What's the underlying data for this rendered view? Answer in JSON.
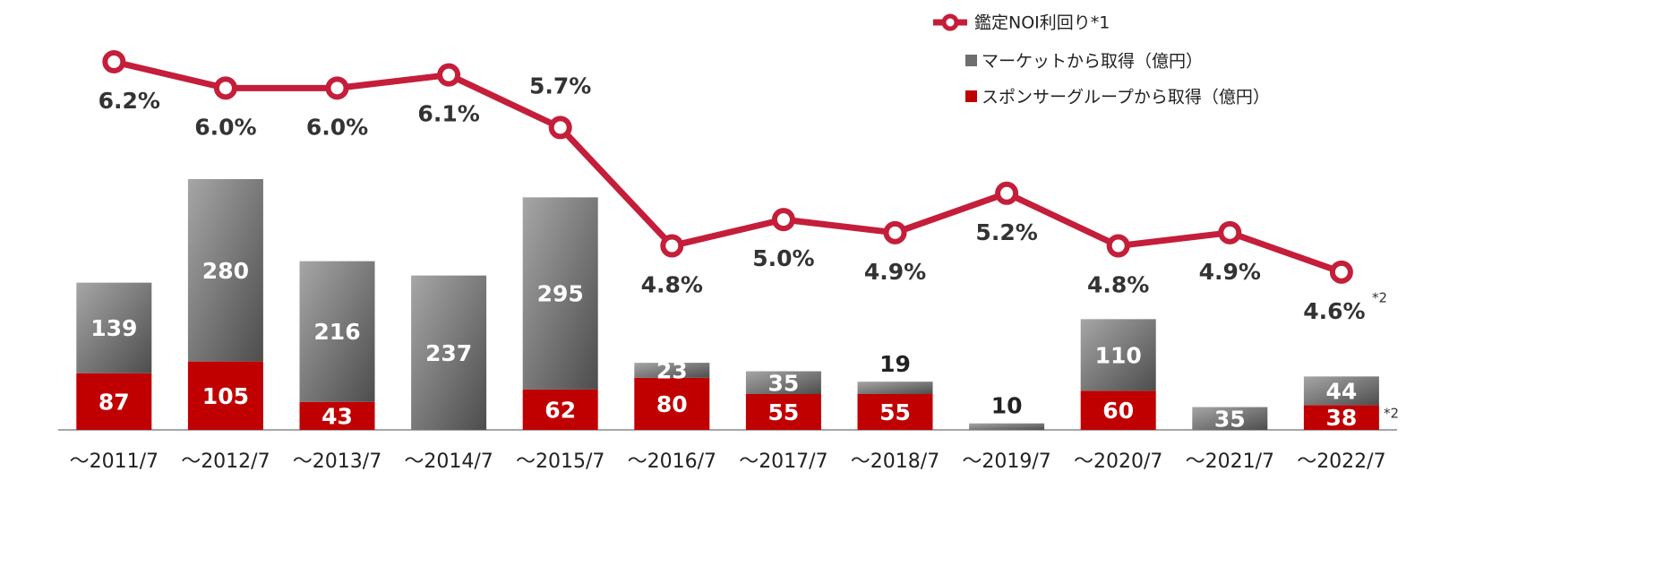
{
  "chart_data": {
    "type": "bar+line",
    "categories": [
      "～2011/7",
      "～2012/7",
      "～2013/7",
      "～2014/7",
      "～2015/7",
      "～2016/7",
      "～2017/7",
      "～2018/7",
      "～2019/7",
      "～2020/7",
      "～2021/7",
      "～2022/7"
    ],
    "series": [
      {
        "name": "スポンサーグループから取得（億円）",
        "color": "#c00000",
        "values": [
          87,
          105,
          43,
          null,
          62,
          80,
          55,
          55,
          null,
          60,
          null,
          38
        ]
      },
      {
        "name": "マーケットから取得（億円）",
        "color": "#6e6e6e",
        "values": [
          139,
          280,
          216,
          237,
          295,
          23,
          35,
          19,
          10,
          110,
          35,
          44
        ]
      },
      {
        "name": "鑑定NOI利回り*1",
        "color": "#c41e3a",
        "axis": "y2",
        "values": [
          6.2,
          6.0,
          6.0,
          6.1,
          5.7,
          4.8,
          5.0,
          4.9,
          5.2,
          4.8,
          4.9,
          4.6
        ],
        "value_labels": [
          "6.2%",
          "6.0%",
          "6.0%",
          "6.1%",
          "5.7%",
          "4.8%",
          "5.0%",
          "4.9%",
          "5.2%",
          "4.8%",
          "4.9%",
          "4.6%"
        ]
      }
    ],
    "annotations": [
      "*2",
      "*2"
    ],
    "ylim": [
      0,
      660
    ],
    "y2lim": [
      3.4,
      6.67
    ],
    "stacked": true,
    "grid": false
  }
}
